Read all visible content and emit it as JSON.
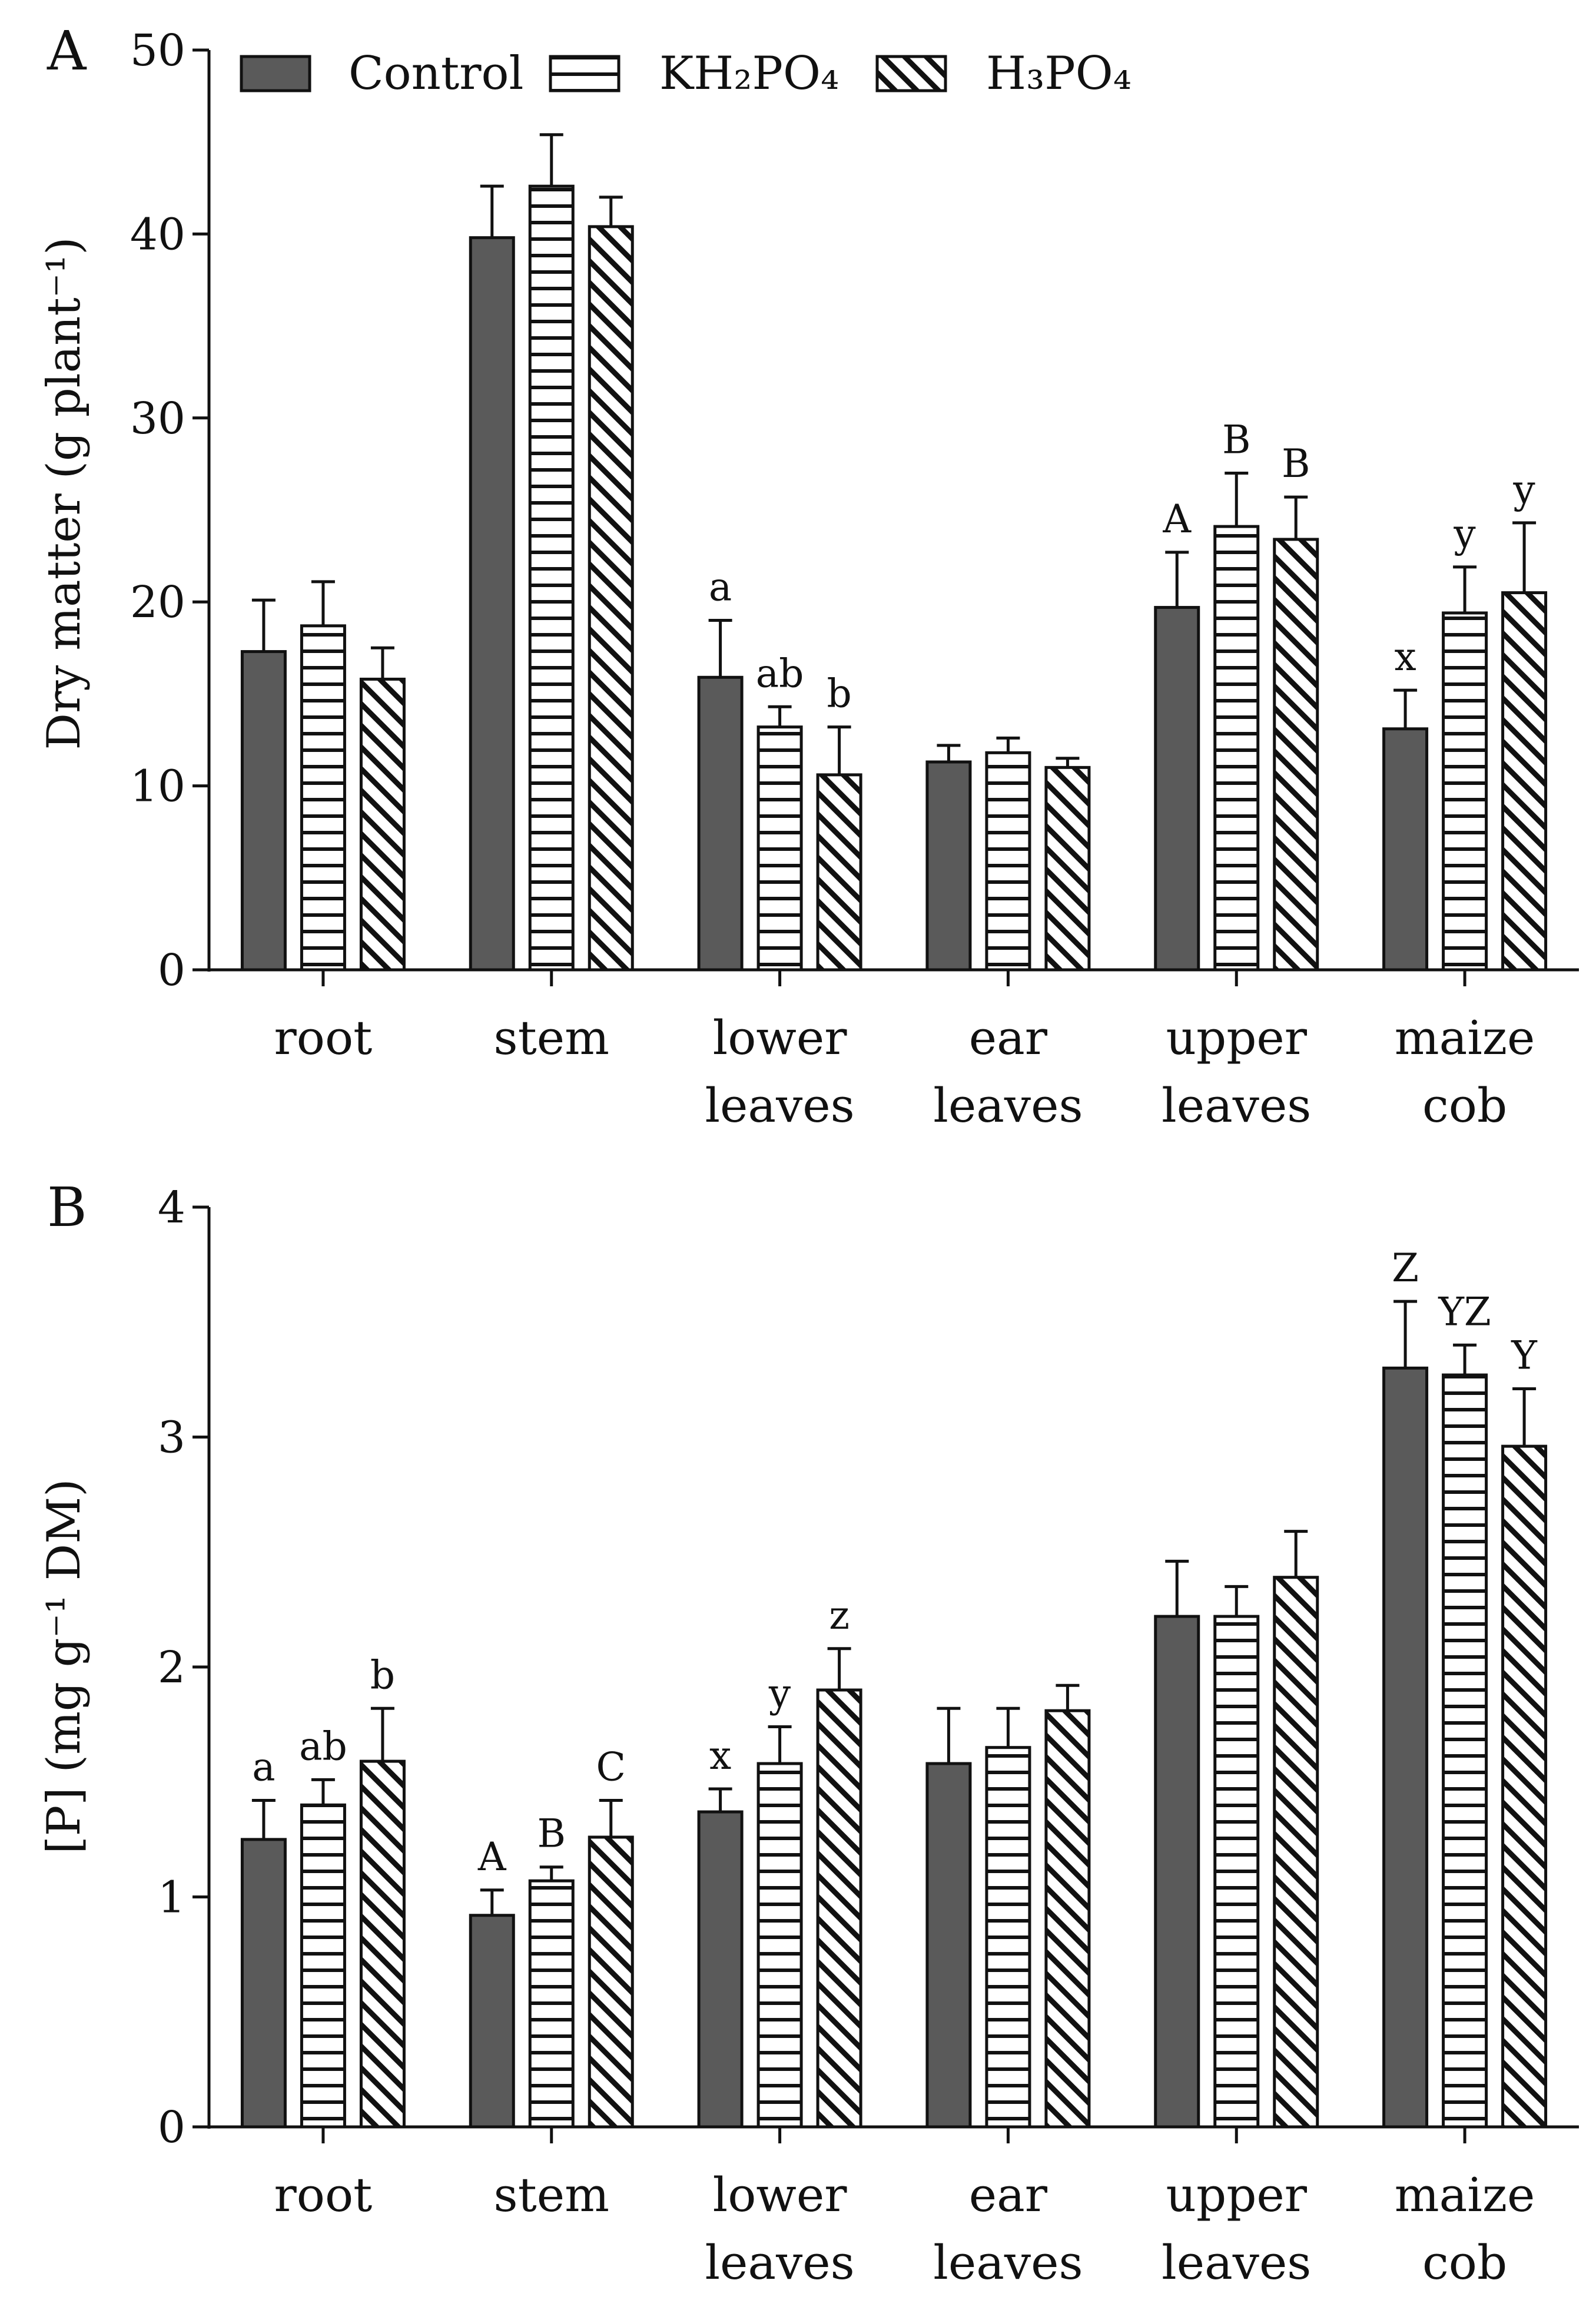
{
  "legend": [
    {
      "key": "control",
      "text": "Control",
      "pattern": "solid"
    },
    {
      "key": "kh2po4",
      "text": "KH₂PO₄",
      "pattern": "horizontal-lines"
    },
    {
      "key": "h3po4",
      "text": "H₃PO₄",
      "pattern": "diagonal-hatch"
    }
  ],
  "colors": {
    "control": "#5a5a5a",
    "stroke": "#111111",
    "background": "#ffffff"
  },
  "chart_data": [
    {
      "panel": "A",
      "type": "bar",
      "ylabel": "Dry matter (g plant⁻¹)",
      "ylim": [
        0,
        50
      ],
      "yticks": [
        0,
        10,
        20,
        30,
        40,
        50
      ],
      "categories": [
        [
          "root"
        ],
        [
          "stem"
        ],
        [
          "lower",
          "leaves"
        ],
        [
          "ear",
          "leaves"
        ],
        [
          "upper",
          "leaves"
        ],
        [
          "maize",
          "cob"
        ]
      ],
      "series": [
        {
          "name": "Control",
          "values": [
            17.3,
            39.8,
            15.9,
            11.3,
            19.7,
            13.1
          ],
          "errors": [
            2.8,
            2.8,
            3.1,
            0.9,
            3.0,
            2.1
          ],
          "labels": [
            "",
            "",
            "a",
            "",
            "A",
            "x"
          ]
        },
        {
          "name": "KH₂PO₄",
          "values": [
            18.7,
            42.6,
            13.2,
            11.8,
            24.1,
            19.4
          ],
          "errors": [
            2.4,
            2.8,
            1.1,
            0.8,
            2.9,
            2.5
          ],
          "labels": [
            "",
            "",
            "ab",
            "",
            "B",
            "y"
          ]
        },
        {
          "name": "H₃PO₄",
          "values": [
            15.8,
            40.4,
            10.6,
            11.0,
            23.4,
            20.5
          ],
          "errors": [
            1.7,
            1.6,
            2.6,
            0.5,
            2.3,
            3.8
          ],
          "labels": [
            "",
            "",
            "b",
            "",
            "B",
            "y"
          ]
        }
      ]
    },
    {
      "panel": "B",
      "type": "bar",
      "ylabel": "[P] (mg g⁻¹ DM)",
      "ylim": [
        0,
        4
      ],
      "yticks": [
        0,
        1,
        2,
        3,
        4
      ],
      "categories": [
        [
          "root"
        ],
        [
          "stem"
        ],
        [
          "lower",
          "leaves"
        ],
        [
          "ear",
          "leaves"
        ],
        [
          "upper",
          "leaves"
        ],
        [
          "maize",
          "cob"
        ]
      ],
      "series": [
        {
          "name": "Control",
          "values": [
            1.25,
            0.92,
            1.37,
            1.58,
            2.22,
            3.3
          ],
          "errors": [
            0.17,
            0.11,
            0.1,
            0.24,
            0.24,
            0.29
          ],
          "labels": [
            "a",
            "A",
            "x",
            "",
            "",
            "Z"
          ]
        },
        {
          "name": "KH₂PO₄",
          "values": [
            1.4,
            1.07,
            1.58,
            1.65,
            2.22,
            3.27
          ],
          "errors": [
            0.11,
            0.06,
            0.16,
            0.17,
            0.13,
            0.13
          ],
          "labels": [
            "ab",
            "B",
            "y",
            "",
            "",
            "YZ"
          ]
        },
        {
          "name": "H₃PO₄",
          "values": [
            1.59,
            1.26,
            1.9,
            1.81,
            2.39,
            2.96
          ],
          "errors": [
            0.23,
            0.16,
            0.18,
            0.11,
            0.2,
            0.25
          ],
          "labels": [
            "b",
            "C",
            "z",
            "",
            "",
            "Y"
          ]
        }
      ]
    }
  ]
}
